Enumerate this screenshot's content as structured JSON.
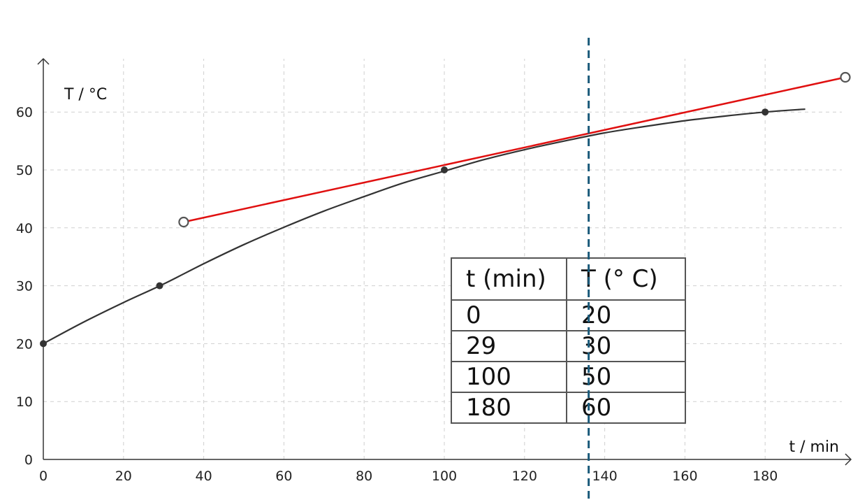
{
  "chart_data": {
    "type": "line",
    "xlabel": "t / min",
    "ylabel": "T / °C",
    "xlim": [
      0,
      200
    ],
    "ylim": [
      0,
      70
    ],
    "x_ticks": [
      0,
      20,
      40,
      60,
      80,
      100,
      120,
      140,
      160,
      180
    ],
    "y_ticks": [
      0,
      10,
      20,
      30,
      40,
      50,
      60
    ],
    "grid": true,
    "grid_style": "dashed",
    "series": [
      {
        "type": "scatter",
        "x": [
          0,
          29,
          100,
          180
        ],
        "y": [
          20,
          30,
          50,
          60
        ],
        "color": "#333333"
      },
      {
        "type": "line",
        "x": [
          0,
          10,
          20,
          30,
          40,
          50,
          60,
          70,
          80,
          90,
          100,
          110,
          120,
          130,
          140,
          150,
          160,
          170,
          180,
          190
        ],
        "y": [
          20,
          23.7,
          27.1,
          30.3,
          33.8,
          37.1,
          40.1,
          42.9,
          45.4,
          47.8,
          49.8,
          51.8,
          53.5,
          55.0,
          56.4,
          57.5,
          58.5,
          59.3,
          60.0,
          60.5
        ],
        "color": "#333333"
      },
      {
        "type": "line",
        "x": [
          35,
          200
        ],
        "y": [
          41,
          66
        ],
        "color": "#e01010",
        "endpoints": "open-circle"
      }
    ],
    "vertical_line": {
      "x": 136,
      "style": "dashed",
      "color": "#1a5a7a"
    },
    "table": {
      "headers": [
        "t (min)",
        "T (° C)"
      ],
      "rows": [
        [
          "0",
          "20"
        ],
        [
          "29",
          "30"
        ],
        [
          "100",
          "50"
        ],
        [
          "180",
          "60"
        ]
      ]
    }
  }
}
